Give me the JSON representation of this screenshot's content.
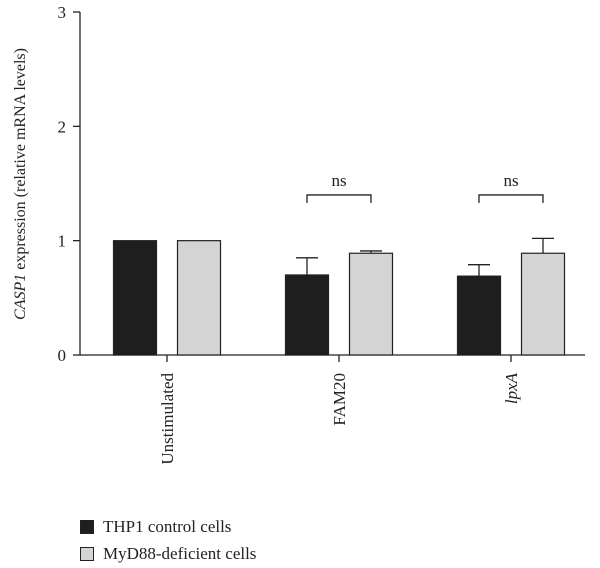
{
  "chart_data": {
    "type": "bar",
    "ylabel_italic": "CASP1",
    "ylabel_rest": " expression (relative mRNA levels)",
    "ylim": [
      0,
      3
    ],
    "yticks": [
      "0",
      "1",
      "2",
      "3"
    ],
    "categories": [
      "Unstimulated",
      "FAM20",
      "lpxA"
    ],
    "categories_italic": [
      false,
      false,
      true
    ],
    "series": [
      {
        "name": "THP1 control cells",
        "color": "#1e1e1e",
        "values": [
          1.0,
          0.7,
          0.69
        ],
        "errors": [
          0,
          0.15,
          0.1
        ]
      },
      {
        "name": "MyD88-deficient cells",
        "color": "#d4d4d4",
        "values": [
          1.0,
          0.89,
          0.89
        ],
        "errors": [
          0,
          0.02,
          0.13
        ]
      }
    ],
    "annotations": [
      {
        "category": "FAM20",
        "text": "ns",
        "y": 1.4
      },
      {
        "category": "lpxA",
        "text": "ns",
        "y": 1.4
      }
    ],
    "grid": false,
    "legend_position": "bottom-left"
  }
}
